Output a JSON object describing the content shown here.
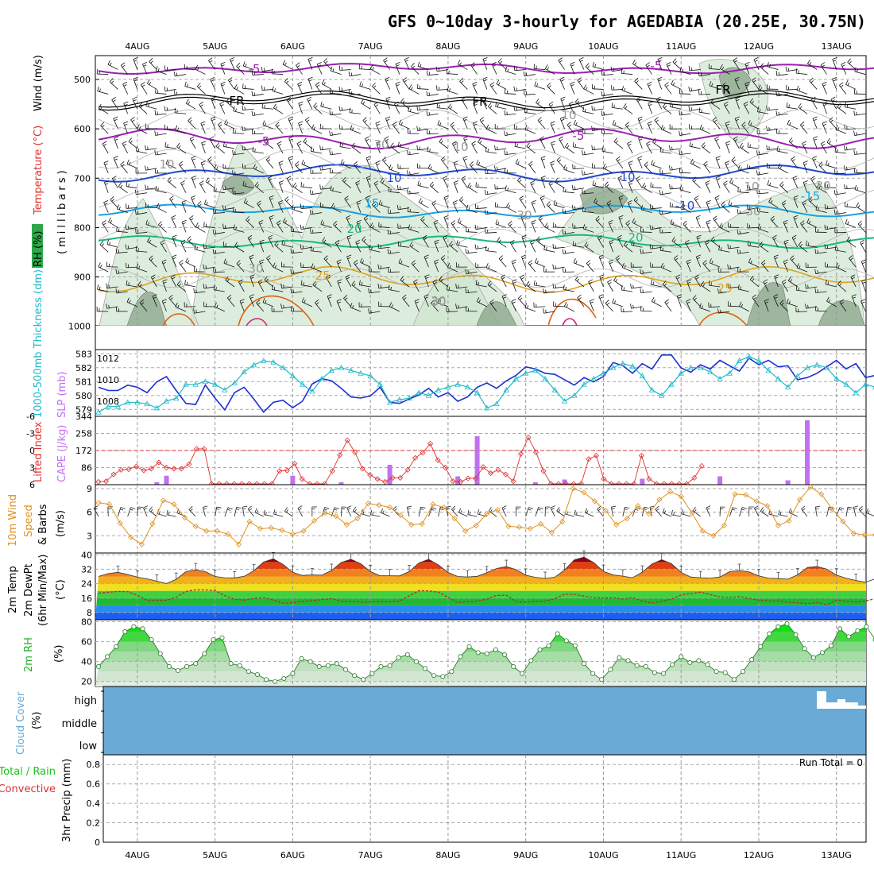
{
  "title": "GFS 0~10day 3-hourly for AGEDABIA (20.25E, 30.75N)",
  "days": [
    "4AUG",
    "5AUG",
    "6AUG",
    "7AUG",
    "8AUG",
    "9AUG",
    "10AUG",
    "11AUG",
    "12AUG",
    "13AUG"
  ],
  "colors": {
    "purple": "#9a1fb0",
    "black": "#000000",
    "blue": "#1f48d0",
    "lightblue": "#1aa0e0",
    "teal": "#18b878",
    "orange": "#e0a020",
    "darkorange": "#e06010",
    "slp": "#1c30d0",
    "thick": "#20b8c8",
    "li": "#e03030",
    "cape": "#c070f0",
    "wind10": "#e09020",
    "cloud": "#6aaad6",
    "rh": "#20d020"
  },
  "panels": {
    "upper": {
      "ylabel_rh": "RH (%)",
      "ylabel_temp": "Temperature (°C)",
      "ylabel_wind": "Wind (m/s)",
      "ylabel_units": "(millibars)",
      "ticks": [
        "500",
        "600",
        "700",
        "800",
        "900",
        "1000"
      ],
      "contour_labels": [
        {
          "t": "-5",
          "c": "purple"
        },
        {
          "t": "-5",
          "c": "purple"
        },
        {
          "t": "FR",
          "c": "black"
        },
        {
          "t": "FR",
          "c": "black"
        },
        {
          "t": "FR",
          "c": "black"
        },
        {
          "t": "-5",
          "c": "purple"
        },
        {
          "t": "-5",
          "c": "purple"
        },
        {
          "t": "10",
          "c": "blue"
        },
        {
          "t": "10",
          "c": "blue"
        },
        {
          "t": "-10",
          "c": "blue"
        },
        {
          "t": "15",
          "c": "lightblue"
        },
        {
          "t": "-15",
          "c": "lightblue"
        },
        {
          "t": "20",
          "c": "teal"
        },
        {
          "t": "20",
          "c": "teal"
        },
        {
          "t": "25",
          "c": "orange"
        },
        {
          "t": "25",
          "c": "orange"
        },
        {
          "t": "10",
          "c": "gray"
        },
        {
          "t": "10",
          "c": "gray"
        },
        {
          "t": "30",
          "c": "gray"
        },
        {
          "t": "10",
          "c": "gray"
        },
        {
          "t": "30",
          "c": "gray"
        },
        {
          "t": "30",
          "c": "gray"
        },
        {
          "t": "30",
          "c": "gray"
        },
        {
          "t": "30",
          "c": "gray"
        },
        {
          "t": "10",
          "c": "gray"
        },
        {
          "t": "30",
          "c": "gray"
        },
        {
          "t": "30",
          "c": "gray"
        }
      ]
    },
    "slp": {
      "ylabel_thick": "1000-500mb Thickness (dm)",
      "ylabel_slp": "SLP (mb)",
      "ticks_left": [
        "583",
        "582",
        "581",
        "580",
        "579"
      ],
      "ticks_right": [
        "1012",
        "1010",
        "1008"
      ]
    },
    "cape": {
      "ylabel_li": "Lifted Index",
      "ylabel_cape": "CAPE (J/kg)",
      "ticks_left": [
        "-6",
        "-3",
        "0",
        "3",
        "6"
      ],
      "ticks_right": [
        "344",
        "258",
        "172",
        "86"
      ]
    },
    "wind10": {
      "ylabel_a": "10m Wind",
      "ylabel_b": "Speed",
      "ylabel_c": "& Barbs",
      "ylabel_units": "(m/s)",
      "ticks": [
        "9",
        "6",
        "3"
      ]
    },
    "temp": {
      "ylabel_a": "2m Temp",
      "ylabel_b": "2m DewPt",
      "ylabel_c": "(6hr Min/Max)",
      "ylabel_units": "(°C)",
      "ticks": [
        "40",
        "32",
        "24",
        "16",
        "8"
      ]
    },
    "rh": {
      "ylabel": "2m RH",
      "ylabel_units": "(%)",
      "ticks": [
        "80",
        "60",
        "40",
        "20"
      ]
    },
    "cloud": {
      "ylabel": "Cloud Cover",
      "ylabel_units": "(%)",
      "ticks": [
        "high",
        "middle",
        "low"
      ]
    },
    "precip": {
      "ylabel_a": "Total / Rain",
      "ylabel_b": "Convective",
      "ylabel_c": "3hr Precip (mm)",
      "ticks": [
        "0.8",
        "0.6",
        "0.4",
        "0.2",
        "0"
      ],
      "run_total": "Run Total = 0"
    }
  },
  "chart_data": [
    {
      "type": "line",
      "title": "GFS 0~10day 3-hourly for AGEDABIA (20.25E, 30.75N)",
      "ylabel": "SLP (mb)",
      "ylim": [
        1006.6,
        1012.8
      ],
      "series": [
        {
          "name": "SLP",
          "values": [
            1009.3,
            1009.0,
            1009.0,
            1009.5,
            1009.3,
            1008.8,
            1009.8,
            1010.3,
            1009.0,
            1007.8,
            1007.7,
            1009.5,
            1008.3,
            1007.2,
            1008.8,
            1009.3,
            1008.2,
            1007.0,
            1007.9,
            1008.1,
            1007.4,
            1008.0,
            1009.6,
            1010.1,
            1009.9,
            1009.2,
            1008.4,
            1008.3,
            1008.5,
            1009.3,
            1007.9,
            1007.8,
            1008.2,
            1008.6,
            1009.2,
            1008.4,
            1008.8,
            1008.0,
            1008.4,
            1009.3,
            1009.7,
            1009.2,
            1009.9,
            1010.4,
            1011.2,
            1011.0,
            1010.6,
            1010.5,
            1010.0,
            1009.5,
            1010.2,
            1009.8,
            1010.3,
            1011.6,
            1011.3,
            1010.6,
            1011.5,
            1011.0,
            1012.3,
            1012.3,
            1011.1,
            1010.7,
            1011.4,
            1011.0,
            1011.8,
            1011.3,
            1010.8,
            1012.0,
            1011.4,
            1011.8,
            1011.2,
            1011.3,
            1010.0,
            1010.2,
            1010.6,
            1011.2,
            1011.8,
            1011.0,
            1011.5,
            1010.2,
            1010.4,
            1011.3
          ]
        }
      ]
    },
    {
      "type": "line",
      "ylabel": "1000-500mb Thickness (dm)",
      "ylim": [
        578.5,
        583.3
      ],
      "series": [
        {
          "name": "Thickness",
          "values": [
            578.8,
            579.2,
            579.2,
            579.5,
            579.5,
            579.4,
            579.1,
            579.6,
            579.8,
            580.8,
            580.8,
            581.0,
            580.8,
            580.4,
            580.9,
            581.7,
            582.2,
            582.5,
            582.4,
            582.0,
            581.4,
            580.8,
            580.3,
            581.2,
            581.8,
            582.0,
            581.8,
            581.6,
            581.4,
            580.8,
            579.5,
            579.7,
            579.8,
            580.2,
            580.0,
            580.4,
            580.6,
            580.8,
            580.6,
            580.2,
            579.1,
            579.4,
            580.4,
            581.2,
            581.6,
            581.8,
            581.2,
            580.4,
            579.6,
            580.0,
            580.8,
            581.2,
            581.6,
            582.0,
            582.3,
            582.1,
            581.4,
            580.4,
            580.0,
            580.8,
            581.6,
            582.0,
            582.0,
            581.7,
            581.2,
            581.6,
            582.5,
            582.8,
            582.5,
            581.8,
            581.2,
            580.6,
            581.4,
            582.0,
            582.2,
            582.0,
            581.2,
            580.8,
            580.2,
            580.8,
            580.6,
            579.8
          ]
        }
      ]
    },
    {
      "type": "line",
      "ylabel": "Lifted Index",
      "ylim": [
        6,
        -6
      ],
      "series": [
        {
          "name": "Lifted Index",
          "values": [
            5.5,
            5.4,
            4.2,
            3.4,
            3.3,
            2.8,
            3.5,
            3.2,
            2.1,
            3.0,
            3.2,
            3.2,
            2.4,
            -0.3,
            -0.3,
            6.0,
            6.0,
            6.0,
            6.0,
            6.0,
            6.0,
            6.0,
            6.0,
            6.0,
            3.6,
            3.5,
            2.3,
            5.0,
            6.0,
            6.0,
            6.0,
            3.6,
            0.8,
            -1.8,
            0.3,
            3.2,
            4.3,
            5.0,
            5.5,
            4.8,
            4.8,
            3.4,
            1.3,
            0.4,
            -1.2,
            1.7,
            3.0,
            5.4,
            5.5,
            4.9,
            4.9,
            2.9,
            4.0,
            3.4,
            4.2,
            5.4,
            0.6,
            -2.3,
            0.3,
            3.6,
            6.0,
            6.0,
            6.0,
            6.0,
            6.0,
            1.5,
            0.9,
            5.0,
            6.0,
            6.0,
            6.0,
            6.0,
            0.9,
            5.0,
            6.0,
            6.0,
            6.0,
            6.0,
            6.0,
            4.8,
            2.7,
            1.0,
            -0.1,
            1.0,
            1.1,
            1.1,
            0.9,
            -0.3,
            -0.4,
            1.0,
            -1.2,
            1.1,
            -0.1,
            1.3,
            2.0,
            1.2,
            1.0,
            0.6,
            1.0,
            1.3,
            1.3,
            1.1,
            1.0,
            2.1
          ]
        }
      ]
    },
    {
      "type": "bar",
      "ylabel": "CAPE (J/kg)",
      "ylim": [
        0,
        344
      ],
      "values_by_step": {
        "6": 12,
        "7": 45,
        "20": 45,
        "25": 12,
        "30": 100,
        "37": 42,
        "39": 244,
        "45": 12,
        "48": 26,
        "56": 30,
        "64": 42,
        "71": 22,
        "73": 324
      }
    },
    {
      "type": "line",
      "ylabel": "10m Wind Speed (m/s)",
      "ylim": [
        0.8,
        9.5
      ],
      "series": [
        {
          "name": "10m Wind Speed",
          "values": [
            7.2,
            7.0,
            4.6,
            2.8,
            1.9,
            4.5,
            7.5,
            7.0,
            5.3,
            4.2,
            3.6,
            3.6,
            3.2,
            1.9,
            4.8,
            3.9,
            4.0,
            3.7,
            3.2,
            3.6,
            4.9,
            5.9,
            5.5,
            4.4,
            5.2,
            7.1,
            6.9,
            6.6,
            5.6,
            4.4,
            4.5,
            7.0,
            6.6,
            5.2,
            3.6,
            4.3,
            5.8,
            6.3,
            4.2,
            4.1,
            3.9,
            4.5,
            3.4,
            4.8,
            9.0,
            8.5,
            7.4,
            6.2,
            4.4,
            5.2,
            6.8,
            5.8,
            7.6,
            8.6,
            8.0,
            5.9,
            3.6,
            3.0,
            4.3,
            8.3,
            8.2,
            7.4,
            6.8,
            4.3,
            4.9,
            7.6,
            9.2,
            8.3,
            6.4,
            4.8,
            3.3,
            3.1,
            3.1
          ]
        }
      ]
    },
    {
      "type": "area",
      "ylabel": "2m Temp (°C)",
      "ylim": [
        4,
        41
      ],
      "series": [
        {
          "name": "2m Temp",
          "values": [
            28.0,
            29.6,
            30.3,
            29.1,
            27.6,
            26.7,
            25.4,
            24.1,
            26.4,
            30.7,
            31.7,
            30.7,
            28.0,
            27.3,
            27.2,
            28.1,
            31.2,
            36.0,
            37.8,
            34.7,
            30.3,
            28.6,
            28.9,
            28.7,
            31.3,
            35.8,
            37.5,
            35.1,
            30.7,
            28.4,
            28.4,
            28.3,
            30.7,
            35.5,
            37.5,
            34.4,
            30.2,
            28.0,
            27.7,
            28.1,
            30.1,
            32.4,
            33.5,
            31.8,
            28.7,
            27.5,
            26.9,
            27.6,
            31.6,
            37.2,
            38.7,
            35.7,
            30.8,
            28.9,
            28.2,
            27.3,
            30.4,
            34.9,
            37.3,
            35.1,
            30.3,
            27.7,
            27.3,
            27.1,
            27.7,
            30.7,
            31.3,
            30.5,
            28.3,
            27.1,
            26.8,
            26.5,
            28.9,
            33.0,
            33.5,
            32.1,
            28.8,
            27.0,
            25.8,
            24.8,
            26.7
          ]
        },
        {
          "name": "2m DewPt",
          "values": [
            18.7,
            19.3,
            19.7,
            19.6,
            17.5,
            14.8,
            14.8,
            14.7,
            16.5,
            19.7,
            20.6,
            20.5,
            20.2,
            17.3,
            15.3,
            14.9,
            15.8,
            16.3,
            14.9,
            13.2,
            13.4,
            14.2,
            14.5,
            15.2,
            15.7,
            14.3,
            14.2,
            13.8,
            13.9,
            14.0,
            13.9,
            14.4,
            17.2,
            20.1,
            20.0,
            19.3,
            16.4,
            13.5,
            14.1,
            14.3,
            15.5,
            17.5,
            17.6,
            14.1,
            13.8,
            14.2,
            14.3,
            15.7,
            18.1,
            18.1,
            17.1,
            16.3,
            16.0,
            16.2,
            15.5,
            16.3,
            14.3,
            13.3,
            14.2,
            15.4,
            17.7,
            18.6,
            19.3,
            18.0,
            16.6,
            16.2,
            16.8,
            15.8,
            14.9,
            14.4,
            14.4,
            13.8,
            13.4,
            12.9,
            13.6,
            12.3,
            14.9,
            14.2,
            13.8,
            14.4,
            15.7
          ]
        }
      ]
    },
    {
      "type": "area",
      "ylabel": "2m RH (%)",
      "ylim": [
        15,
        82
      ],
      "series": [
        {
          "name": "2m RH",
          "values": [
            35,
            45,
            55,
            70,
            75,
            73,
            62,
            48,
            35,
            31,
            35,
            38,
            48,
            62,
            64,
            38,
            36,
            30,
            27,
            22,
            20,
            23,
            28,
            43,
            40,
            35,
            36,
            38,
            32,
            26,
            22,
            28,
            35,
            36,
            44,
            47,
            40,
            33,
            26,
            25,
            30,
            45,
            55,
            49,
            48,
            52,
            47,
            35,
            28,
            41,
            52,
            56,
            68,
            61,
            56,
            38,
            28,
            22,
            32,
            44,
            41,
            36,
            35,
            29,
            28,
            37,
            45,
            39,
            41,
            37,
            30,
            29,
            22,
            30,
            42,
            55,
            68,
            75,
            78,
            67,
            53,
            44,
            49,
            56,
            73,
            65,
            71,
            75,
            62
          ]
        }
      ]
    },
    {
      "type": "bar",
      "ylabel": "3hr Precip (mm)",
      "ylim": [
        0,
        0.9
      ],
      "values": []
    }
  ]
}
